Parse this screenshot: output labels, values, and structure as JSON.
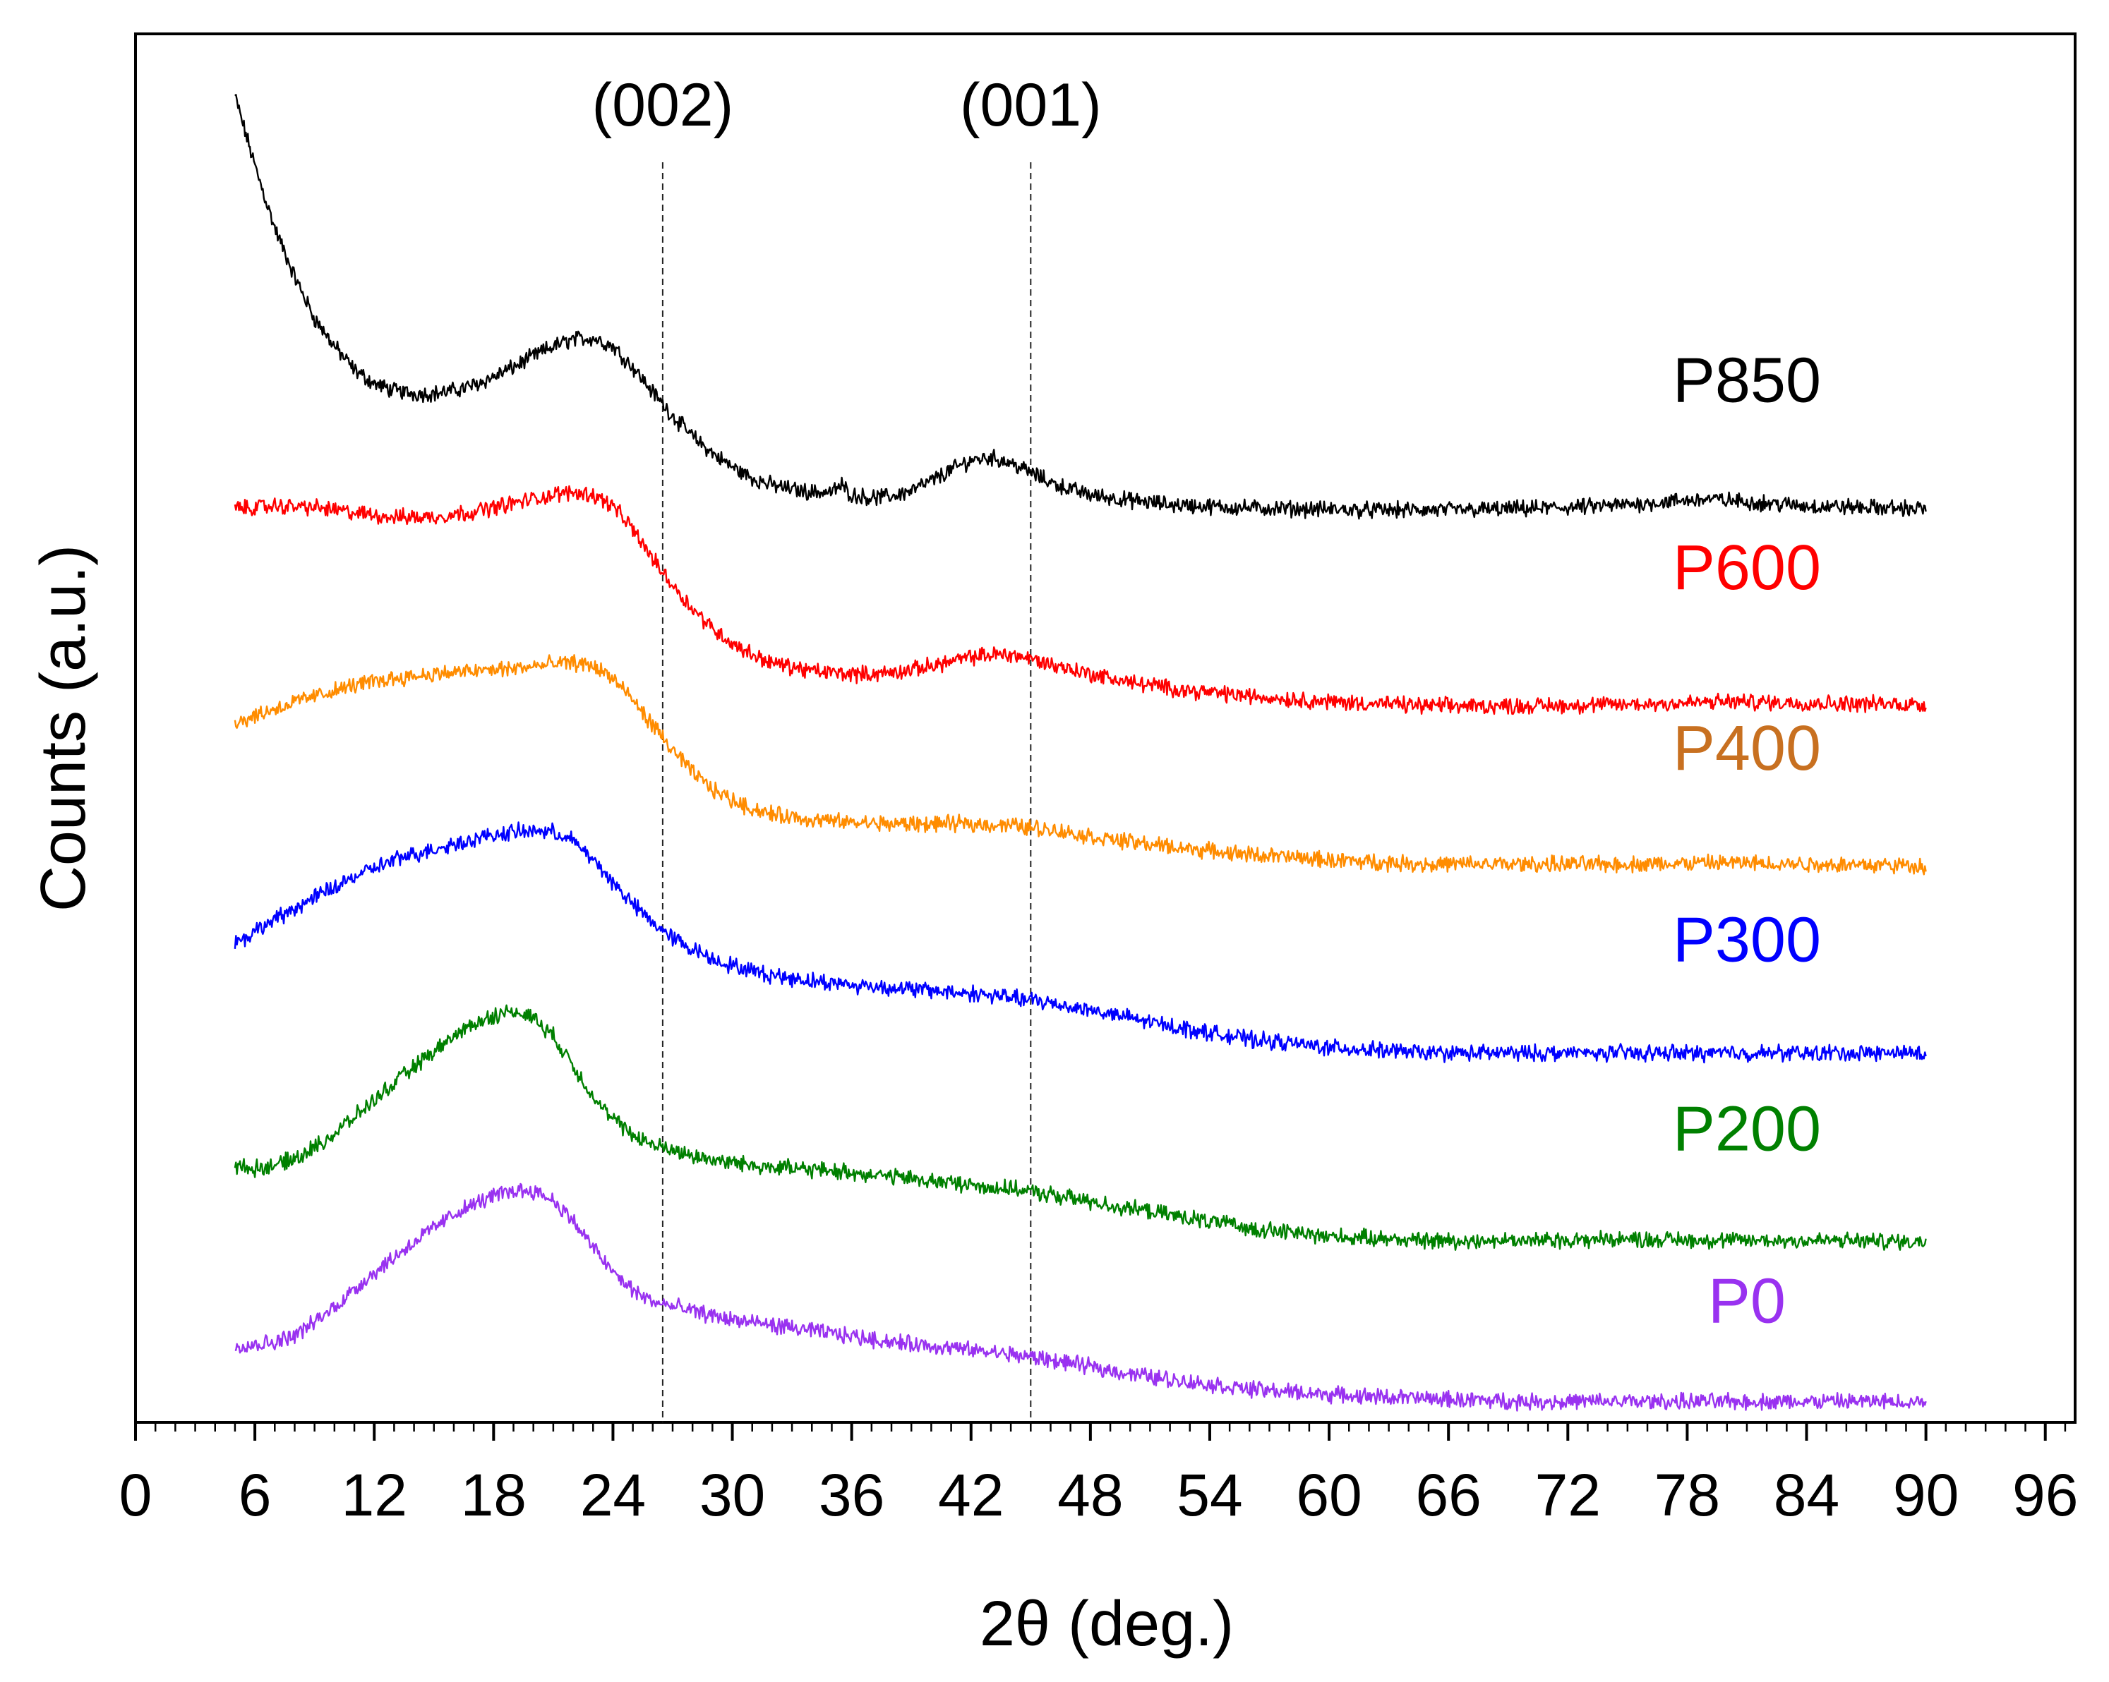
{
  "chart_data": {
    "type": "line",
    "title": "",
    "xlabel": "2θ (deg.)",
    "ylabel": "Counts (a.u.)",
    "xlim": [
      0,
      97.5
    ],
    "ylim": [
      0,
      1
    ],
    "x_ticks": [
      0,
      6,
      12,
      18,
      24,
      30,
      36,
      42,
      48,
      54,
      60,
      66,
      72,
      78,
      84,
      90,
      96
    ],
    "x_tick_labels": [
      "0",
      "6",
      "12",
      "18",
      "24",
      "30",
      "36",
      "42",
      "48",
      "54",
      "60",
      "66",
      "72",
      "78",
      "84",
      "90",
      "96"
    ],
    "minor_tick_step": 1,
    "grid": false,
    "y_ticks_shown": false,
    "reference_lines": [
      {
        "label": "(002)",
        "x": 26.5
      },
      {
        "label": "(001)",
        "x": 45.0
      }
    ],
    "series": [
      {
        "name": "P850",
        "color": "#000000",
        "x": [
          5,
          6,
          7,
          8,
          9,
          10,
          11,
          12,
          13,
          14,
          15,
          16,
          17,
          18,
          19,
          20,
          21,
          22,
          23,
          24,
          25,
          26,
          27,
          28,
          29,
          30,
          31,
          32,
          33,
          34,
          35,
          35.5,
          36,
          37,
          38,
          39,
          40,
          41,
          42,
          43,
          44,
          45,
          46,
          47,
          48,
          50,
          52,
          55,
          58,
          62,
          66,
          70,
          74,
          77,
          79,
          81,
          84,
          87,
          90
        ],
        "y": [
          0.955,
          0.905,
          0.86,
          0.825,
          0.795,
          0.775,
          0.758,
          0.748,
          0.743,
          0.741,
          0.741,
          0.743,
          0.747,
          0.753,
          0.76,
          0.768,
          0.775,
          0.78,
          0.781,
          0.775,
          0.76,
          0.742,
          0.725,
          0.71,
          0.698,
          0.688,
          0.68,
          0.675,
          0.672,
          0.67,
          0.67,
          0.675,
          0.668,
          0.666,
          0.667,
          0.671,
          0.678,
          0.686,
          0.693,
          0.695,
          0.691,
          0.684,
          0.677,
          0.672,
          0.668,
          0.664,
          0.661,
          0.659,
          0.658,
          0.657,
          0.657,
          0.658,
          0.66,
          0.663,
          0.665,
          0.663,
          0.66,
          0.659,
          0.658
        ]
      },
      {
        "name": "P600",
        "color": "#ff0000",
        "x": [
          5,
          7,
          9,
          11,
          13,
          15,
          17,
          19,
          21,
          22,
          23,
          24,
          25,
          26,
          27,
          28,
          29,
          30,
          31,
          32,
          33,
          34,
          35,
          36,
          37,
          38,
          39,
          40,
          41,
          42,
          43,
          44,
          45,
          46,
          48,
          50,
          53,
          56,
          60,
          65,
          70,
          75,
          80,
          85,
          90
        ],
        "y": [
          0.658,
          0.66,
          0.659,
          0.655,
          0.652,
          0.652,
          0.656,
          0.662,
          0.668,
          0.67,
          0.668,
          0.66,
          0.643,
          0.622,
          0.603,
          0.586,
          0.572,
          0.561,
          0.553,
          0.547,
          0.544,
          0.541,
          0.54,
          0.539,
          0.539,
          0.54,
          0.542,
          0.545,
          0.548,
          0.551,
          0.553,
          0.553,
          0.55,
          0.546,
          0.539,
          0.533,
          0.527,
          0.523,
          0.519,
          0.516,
          0.516,
          0.517,
          0.519,
          0.518,
          0.517
        ]
      },
      {
        "name": "P400",
        "color": "#ff8c00",
        "x": [
          5,
          7,
          9,
          11,
          13,
          15,
          17,
          19,
          21,
          22,
          23,
          24,
          25,
          26,
          27,
          28,
          29,
          30,
          31,
          32,
          33,
          34,
          36,
          38,
          40,
          42,
          44,
          46,
          48,
          50,
          53,
          56,
          60,
          65,
          70,
          75,
          80,
          85,
          90
        ],
        "y": [
          0.504,
          0.514,
          0.523,
          0.531,
          0.536,
          0.539,
          0.541,
          0.543,
          0.546,
          0.547,
          0.545,
          0.536,
          0.52,
          0.502,
          0.484,
          0.468,
          0.456,
          0.448,
          0.442,
          0.438,
          0.436,
          0.434,
          0.432,
          0.431,
          0.431,
          0.431,
          0.43,
          0.427,
          0.422,
          0.418,
          0.413,
          0.409,
          0.405,
          0.402,
          0.402,
          0.402,
          0.403,
          0.402,
          0.401
        ]
      },
      {
        "name": "P300",
        "color": "#0000ff",
        "x": [
          5,
          7,
          9,
          11,
          13,
          15,
          17,
          18,
          19,
          20,
          21,
          22,
          23,
          24,
          25,
          26,
          27,
          28,
          29,
          30,
          31,
          32,
          34,
          36,
          38,
          40,
          42,
          44,
          46,
          48,
          50,
          53,
          56,
          60,
          65,
          70,
          75,
          80,
          85,
          90
        ],
        "y": [
          0.345,
          0.362,
          0.378,
          0.393,
          0.405,
          0.413,
          0.42,
          0.423,
          0.425,
          0.426,
          0.425,
          0.419,
          0.405,
          0.389,
          0.373,
          0.36,
          0.349,
          0.341,
          0.334,
          0.329,
          0.325,
          0.322,
          0.318,
          0.315,
          0.313,
          0.311,
          0.309,
          0.306,
          0.302,
          0.297,
          0.291,
          0.283,
          0.276,
          0.27,
          0.266,
          0.266,
          0.266,
          0.266,
          0.266,
          0.266
        ]
      },
      {
        "name": "P200",
        "color": "#008000",
        "x": [
          5,
          6,
          7,
          8,
          9,
          10,
          11,
          12,
          13,
          14,
          15,
          16,
          17,
          18,
          19,
          20,
          21,
          22,
          23,
          24,
          25,
          26,
          28,
          30,
          32,
          34,
          36,
          38,
          40,
          42,
          44,
          46,
          48,
          50,
          53,
          56,
          60,
          65,
          70,
          75,
          80,
          85,
          90
        ],
        "y": [
          0.184,
          0.183,
          0.185,
          0.19,
          0.198,
          0.208,
          0.22,
          0.232,
          0.244,
          0.256,
          0.267,
          0.278,
          0.287,
          0.293,
          0.296,
          0.292,
          0.278,
          0.257,
          0.235,
          0.218,
          0.207,
          0.2,
          0.192,
          0.187,
          0.184,
          0.182,
          0.18,
          0.177,
          0.174,
          0.171,
          0.168,
          0.164,
          0.159,
          0.154,
          0.147,
          0.14,
          0.134,
          0.131,
          0.131,
          0.132,
          0.131,
          0.131,
          0.13
        ]
      },
      {
        "name": "P0",
        "color": "#9932f0",
        "x": [
          5,
          6,
          7,
          8,
          9,
          10,
          11,
          12,
          13,
          14,
          15,
          16,
          17,
          18,
          19,
          20,
          21,
          22,
          23,
          24,
          25,
          26,
          28,
          30,
          32,
          34,
          36,
          38,
          40,
          42,
          44,
          46,
          48,
          50,
          53,
          56,
          60,
          65,
          70,
          75,
          80,
          85,
          90
        ],
        "y": [
          0.056,
          0.056,
          0.058,
          0.063,
          0.072,
          0.083,
          0.096,
          0.108,
          0.119,
          0.13,
          0.14,
          0.15,
          0.157,
          0.163,
          0.167,
          0.167,
          0.16,
          0.145,
          0.126,
          0.108,
          0.095,
          0.087,
          0.08,
          0.074,
          0.07,
          0.066,
          0.062,
          0.058,
          0.055,
          0.052,
          0.049,
          0.045,
          0.04,
          0.035,
          0.029,
          0.024,
          0.02,
          0.017,
          0.015,
          0.015,
          0.015,
          0.015,
          0.015
        ]
      }
    ],
    "series_labels": [
      {
        "text": "P850",
        "color": "#000000",
        "x": 81,
        "y": 0.735
      },
      {
        "text": "P600",
        "color": "#ff0000",
        "x": 81,
        "y": 0.6
      },
      {
        "text": "P400",
        "color": "#c87020",
        "x": 81,
        "y": 0.47
      },
      {
        "text": "P300",
        "color": "#0000ff",
        "x": 81,
        "y": 0.332
      },
      {
        "text": "P200",
        "color": "#008000",
        "x": 81,
        "y": 0.196
      },
      {
        "text": "P0",
        "color": "#9932f0",
        "x": 81,
        "y": 0.072
      }
    ]
  }
}
